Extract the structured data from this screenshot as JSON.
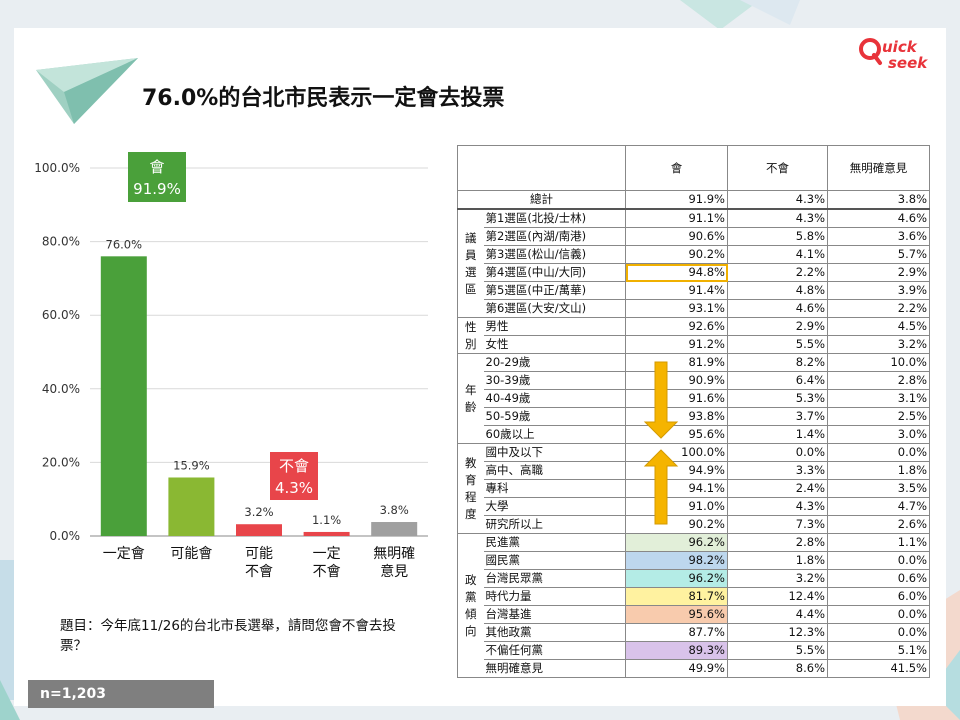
{
  "title": "76.0%的台北市民表示一定會去投票",
  "question": "題目：今年底11/26的台北市長選舉，請問您會不會去投票？",
  "sample": "n=1,203",
  "colors": {
    "bar_green_dark": "#4aa03a",
    "bar_green_light": "#8ab833",
    "bar_red": "#e8454a",
    "bar_gray": "#a0a0a0",
    "arrow": "#f5b400"
  },
  "chart_data": {
    "type": "bar",
    "categories": [
      "一定會",
      "可能會",
      "可能\n不會",
      "一定\n不會",
      "無明確\n意見"
    ],
    "values": [
      76.0,
      15.9,
      3.2,
      1.1,
      3.8
    ],
    "value_labels": [
      "76.0%",
      "15.9%",
      "3.2%",
      "1.1%",
      "3.8%"
    ],
    "yticks": [
      "0.0%",
      "20.0%",
      "40.0%",
      "60.0%",
      "80.0%",
      "100.0%"
    ],
    "ylim": [
      0,
      100
    ],
    "callouts": [
      {
        "label": "會",
        "value": "91.9%",
        "color": "#4aa03a"
      },
      {
        "label": "不會",
        "value": "4.3%",
        "color": "#e8454a"
      }
    ]
  },
  "table": {
    "headers": [
      "會",
      "不會",
      "無明確意見"
    ],
    "total": {
      "label": "總計",
      "values": [
        "91.9%",
        "4.3%",
        "3.8%"
      ]
    },
    "groups": [
      {
        "name": "議員選區",
        "rows": [
          {
            "label": "第1選區(北投/士林)",
            "values": [
              "91.1%",
              "4.3%",
              "4.6%"
            ]
          },
          {
            "label": "第2選區(內湖/南港)",
            "values": [
              "90.6%",
              "5.8%",
              "3.6%"
            ]
          },
          {
            "label": "第3選區(松山/信義)",
            "values": [
              "90.2%",
              "4.1%",
              "5.7%"
            ]
          },
          {
            "label": "第4選區(中山/大同)",
            "values": [
              "94.8%",
              "2.2%",
              "2.9%"
            ]
          },
          {
            "label": "第5選區(中正/萬華)",
            "values": [
              "91.4%",
              "4.8%",
              "3.9%"
            ]
          },
          {
            "label": "第6選區(大安/文山)",
            "values": [
              "93.1%",
              "4.6%",
              "2.2%"
            ]
          }
        ]
      },
      {
        "name": "性別",
        "rows": [
          {
            "label": "男性",
            "values": [
              "92.6%",
              "2.9%",
              "4.5%"
            ]
          },
          {
            "label": "女性",
            "values": [
              "91.2%",
              "5.5%",
              "3.2%"
            ]
          }
        ]
      },
      {
        "name": "年齡",
        "rows": [
          {
            "label": "20-29歲",
            "values": [
              "81.9%",
              "8.2%",
              "10.0%"
            ]
          },
          {
            "label": "30-39歲",
            "values": [
              "90.9%",
              "6.4%",
              "2.8%"
            ]
          },
          {
            "label": "40-49歲",
            "values": [
              "91.6%",
              "5.3%",
              "3.1%"
            ]
          },
          {
            "label": "50-59歲",
            "values": [
              "93.8%",
              "3.7%",
              "2.5%"
            ]
          },
          {
            "label": "60歲以上",
            "values": [
              "95.6%",
              "1.4%",
              "3.0%"
            ]
          }
        ]
      },
      {
        "name": "教育程度",
        "rows": [
          {
            "label": "國中及以下",
            "values": [
              "100.0%",
              "0.0%",
              "0.0%"
            ]
          },
          {
            "label": "高中、高職",
            "values": [
              "94.9%",
              "3.3%",
              "1.8%"
            ]
          },
          {
            "label": "專科",
            "values": [
              "94.1%",
              "2.4%",
              "3.5%"
            ]
          },
          {
            "label": "大學",
            "values": [
              "91.0%",
              "4.3%",
              "4.7%"
            ]
          },
          {
            "label": "研究所以上",
            "values": [
              "90.2%",
              "7.3%",
              "2.6%"
            ]
          }
        ]
      },
      {
        "name": "政黨傾向",
        "rows": [
          {
            "label": "民進黨",
            "values": [
              "96.2%",
              "2.8%",
              "1.1%"
            ],
            "color": "#e2efd9"
          },
          {
            "label": "國民黨",
            "values": [
              "98.2%",
              "1.8%",
              "0.0%"
            ],
            "color": "#bdd7ee"
          },
          {
            "label": "台灣民眾黨",
            "values": [
              "96.2%",
              "3.2%",
              "0.6%"
            ],
            "color": "#b4ece6"
          },
          {
            "label": "時代力量",
            "values": [
              "81.7%",
              "12.4%",
              "6.0%"
            ],
            "color": "#fff2a0"
          },
          {
            "label": "台灣基進",
            "values": [
              "95.6%",
              "4.4%",
              "0.0%"
            ],
            "color": "#f8cbad"
          },
          {
            "label": "其他政黨",
            "values": [
              "87.7%",
              "12.3%",
              "0.0%"
            ]
          },
          {
            "label": "不偏任何黨",
            "values": [
              "89.3%",
              "5.5%",
              "5.1%"
            ],
            "color": "#d9c3ea"
          },
          {
            "label": "無明確意見",
            "values": [
              "49.9%",
              "8.6%",
              "41.5%"
            ]
          }
        ]
      }
    ]
  }
}
